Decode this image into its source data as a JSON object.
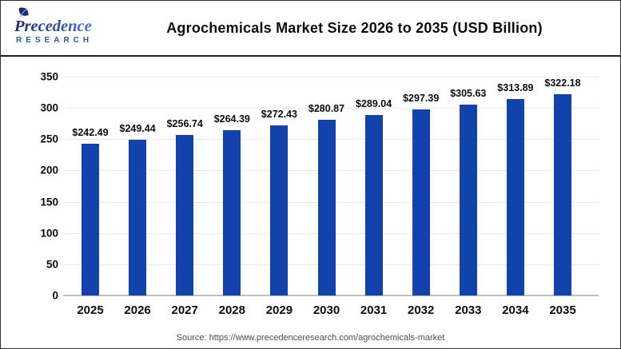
{
  "logo": {
    "name": "Precedence",
    "subname": "RESEARCH"
  },
  "header": {
    "title": "Agrochemicals Market Size 2026 to 2035 (USD Billion)"
  },
  "chart_data": {
    "type": "bar",
    "title": "Agrochemicals Market Size 2026 to 2035 (USD Billion)",
    "categories": [
      "2025",
      "2026",
      "2027",
      "2028",
      "2029",
      "2030",
      "2031",
      "2032",
      "2033",
      "2034",
      "2035"
    ],
    "values": [
      242.49,
      249.44,
      256.74,
      264.39,
      272.43,
      280.87,
      289.04,
      297.39,
      305.63,
      313.89,
      322.18
    ],
    "value_labels": [
      "$242.49",
      "$249.44",
      "$256.74",
      "$264.39",
      "$272.43",
      "$280.87",
      "$289.04",
      "$297.39",
      "$305.63",
      "$313.89",
      "$322.18"
    ],
    "unit": "USD Billion",
    "xlabel": "",
    "ylabel": "",
    "ylim": [
      0,
      350
    ],
    "yticks": [
      0,
      50,
      100,
      150,
      200,
      250,
      300,
      350
    ],
    "grid": true,
    "legend": false,
    "bar_color": "#1243ad"
  },
  "footer": {
    "source": "Source: https://www.precedenceresearch.com/agrochemicals-market"
  },
  "colors": {
    "bar": "#1243ad",
    "grid": "#e9e9e9",
    "axis": "#bfbfbf",
    "separator": "#181c3a",
    "logo_navy": "#1d2973",
    "logo_blue": "#3f74c9",
    "logo_sub": "#2857a4",
    "source_text": "#4d4d4d"
  }
}
